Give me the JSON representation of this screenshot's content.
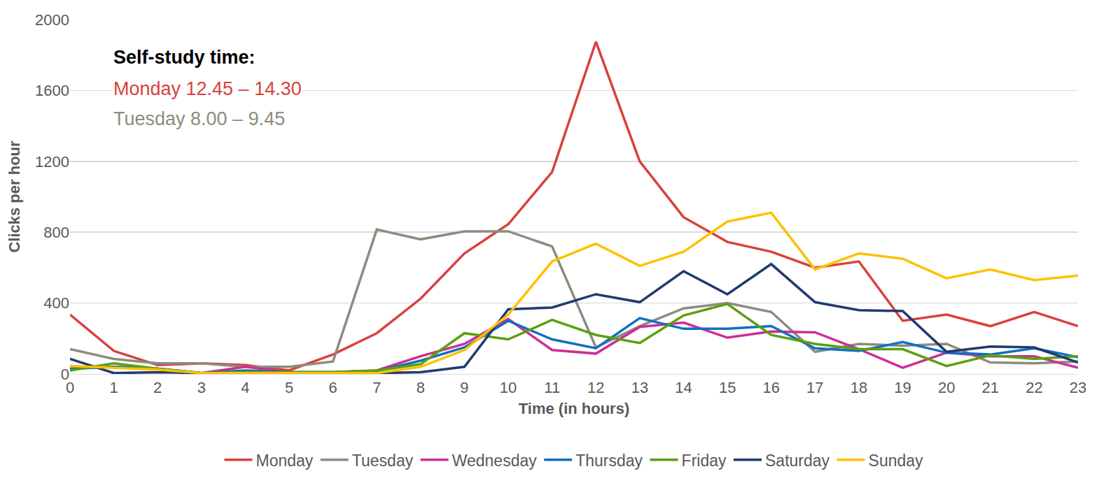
{
  "chart_data": {
    "type": "line",
    "x_label": "Time (in hours)",
    "y_label": "Clicks per hour",
    "categories": [
      "0",
      "1",
      "2",
      "3",
      "4",
      "5",
      "6",
      "7",
      "8",
      "9",
      "10",
      "11",
      "12",
      "13",
      "14",
      "15",
      "16",
      "17",
      "18",
      "19",
      "20",
      "21",
      "22",
      "23"
    ],
    "series": [
      {
        "name": "Monday",
        "color": "#d9413d",
        "values": [
          335,
          130,
          50,
          60,
          50,
          20,
          110,
          230,
          425,
          680,
          845,
          1140,
          1875,
          1200,
          885,
          745,
          690,
          600,
          635,
          300,
          335,
          270,
          350,
          270
        ]
      },
      {
        "name": "Tuesday",
        "color": "#8c8c7e",
        "values": [
          140,
          85,
          60,
          60,
          40,
          40,
          70,
          815,
          760,
          805,
          805,
          720,
          150,
          270,
          370,
          400,
          350,
          125,
          170,
          160,
          170,
          65,
          60,
          70
        ]
      },
      {
        "name": "Wednesday",
        "color": "#cc2e96",
        "values": [
          30,
          40,
          30,
          5,
          40,
          10,
          10,
          20,
          100,
          170,
          310,
          135,
          115,
          265,
          290,
          205,
          240,
          235,
          140,
          35,
          120,
          100,
          100,
          35
        ]
      },
      {
        "name": "Thursday",
        "color": "#1070c0",
        "values": [
          30,
          40,
          30,
          5,
          20,
          10,
          10,
          15,
          75,
          150,
          300,
          195,
          145,
          315,
          255,
          255,
          270,
          145,
          130,
          180,
          120,
          110,
          145,
          95
        ]
      },
      {
        "name": "Friday",
        "color": "#5aa00f",
        "values": [
          20,
          60,
          30,
          5,
          10,
          10,
          10,
          20,
          55,
          230,
          195,
          305,
          220,
          175,
          330,
          395,
          220,
          170,
          140,
          140,
          45,
          105,
          85,
          100
        ]
      },
      {
        "name": "Saturday",
        "color": "#1f3a70",
        "values": [
          85,
          5,
          10,
          5,
          5,
          5,
          5,
          5,
          10,
          40,
          365,
          375,
          450,
          405,
          580,
          450,
          620,
          405,
          360,
          355,
          125,
          155,
          150,
          65
        ]
      },
      {
        "name": "Sunday",
        "color": "#ffc000",
        "values": [
          45,
          35,
          25,
          5,
          5,
          5,
          5,
          5,
          40,
          135,
          335,
          635,
          735,
          610,
          690,
          860,
          910,
          590,
          680,
          650,
          540,
          590,
          530,
          555
        ]
      }
    ],
    "annotations": [
      {
        "text": "Self-study time:",
        "color": "#000000"
      },
      {
        "text": "Monday 12.45 – 14.30",
        "color": "#d9413d"
      },
      {
        "text": "Tuesday 8.00 – 9.45",
        "color": "#8c8c7e"
      }
    ],
    "ylim": [
      0,
      2000
    ],
    "yticks": [
      0,
      400,
      800,
      1200,
      1600,
      2000
    ],
    "grid": true,
    "legend": "bottom"
  }
}
